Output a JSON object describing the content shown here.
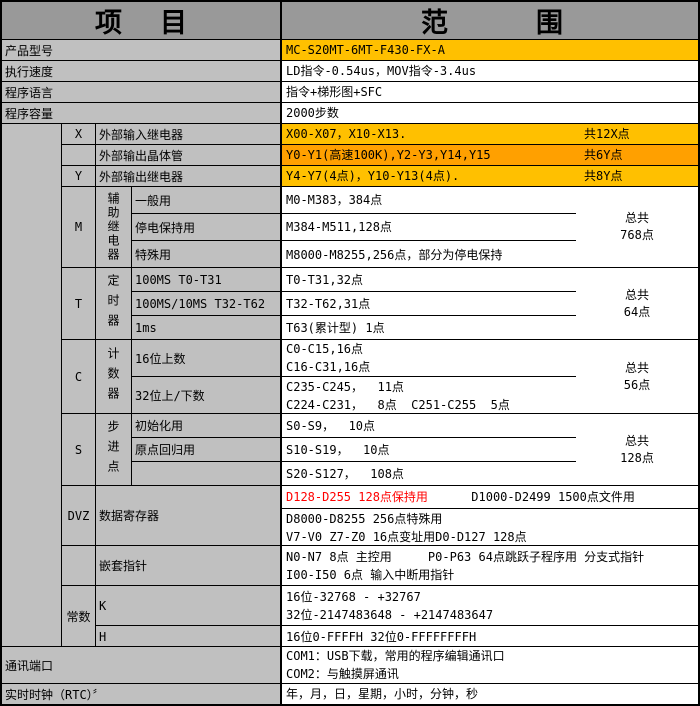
{
  "header": {
    "item": "项目",
    "range": "范围"
  },
  "colors": {
    "header_gray": "#999999",
    "cell_gray": "#C0C0C0",
    "accent_orange_light": "#FFC000",
    "accent_orange_dark": "#FFA000",
    "highlight_red": "#FF0000"
  },
  "basic_rows": [
    {
      "label": "产品型号",
      "value": "MC-S20MT-6MT-F430-FX-A"
    },
    {
      "label": "执行速度",
      "value": "LD指令-0.54us，MOV指令-3.4us"
    },
    {
      "label": "程序语言",
      "value": "指令+梯形图+SFC"
    },
    {
      "label": "程序容量",
      "value": "2000步数"
    }
  ],
  "io_rows": [
    {
      "key": "X",
      "label": "外部输入继电器",
      "value": "X00-X07，X10-X13.",
      "total": "共12X点"
    },
    {
      "key": "",
      "label": "外部输出晶体管",
      "value": "Y0-Y1(高速100K),Y2-Y3,Y14,Y15",
      "total": "共6Y点"
    },
    {
      "key": "Y",
      "label": "外部输出继电器",
      "value": "Y4-Y7(4点)，Y10-Y13(4点).",
      "total": "共8Y点"
    }
  ],
  "sections": {
    "m": {
      "key": "M",
      "cat": "辅助继电器",
      "rows": [
        {
          "label": "一般用",
          "value": "M0-M383，384点"
        },
        {
          "label": "停电保持用",
          "value": "M384-M511,128点"
        },
        {
          "label": "特殊用",
          "value": "M8000-M8255,256点，部分为停电保持"
        }
      ],
      "total_title": "总共",
      "total_value": "768点"
    },
    "t": {
      "key": "T",
      "cat": "定时器",
      "rows": [
        {
          "label": "100MS T0-T31",
          "value": "T0-T31,32点"
        },
        {
          "label": "100MS/10MS T32-T62",
          "value": "T32-T62,31点"
        },
        {
          "label": "1ms",
          "value": "T63(累计型) 1点"
        }
      ],
      "total_title": "总共",
      "total_value": "64点"
    },
    "c": {
      "key": "C",
      "cat": "计数器",
      "rows": [
        {
          "label": "16位上数",
          "value": "C0-C15,16点\nC16-C31,16点"
        },
        {
          "label": "32位上/下数",
          "value": "C235-C245，  11点\nC224-C231，  8点  C251-C255  5点"
        }
      ],
      "total_title": "总共",
      "total_value": "56点"
    },
    "s": {
      "key": "S",
      "cat": "步进点",
      "rows": [
        {
          "label": "初始化用",
          "value": "S0-S9，  10点"
        },
        {
          "label": "原点回归用",
          "value": "S10-S19，  10点"
        },
        {
          "label": "",
          "value": "S20-S127，  108点"
        }
      ],
      "total_title": "总共",
      "total_value": "128点"
    },
    "dvz": {
      "key": "DVZ",
      "label": "数据寄存器",
      "line1_red": "D128-D255 128点保持用",
      "line1_black": "      D1000-D2499 1500点文件用",
      "lines23": "D8000-D8255 256点特殊用\nV7-V0 Z7-Z0 16点变址用D0-D127 128点"
    },
    "pointer": {
      "key": "",
      "label": "嵌套指针",
      "value": "N0-N7 8点 主控用     P0-P63 64点跳跃子程序用 分支式指针\nI00-I50 6点 输入中断用指针"
    },
    "constant": {
      "key": "常数",
      "rows": [
        {
          "label": "K",
          "value": "16位-32768 - +32767\n32位-2147483648 - +2147483647"
        },
        {
          "label": "H",
          "value": "16位0-FFFFH 32位0-FFFFFFFFH"
        }
      ]
    }
  },
  "bottom_rows": [
    {
      "label": "通讯端口",
      "value": "COM1：USB下载，常用的程序编辑通讯口\nCOM2：与触摸屏通讯"
    },
    {
      "label": "实时时钟（RTC）〞",
      "value": "年，月，日，星期，小时，分钟，秒"
    }
  ]
}
